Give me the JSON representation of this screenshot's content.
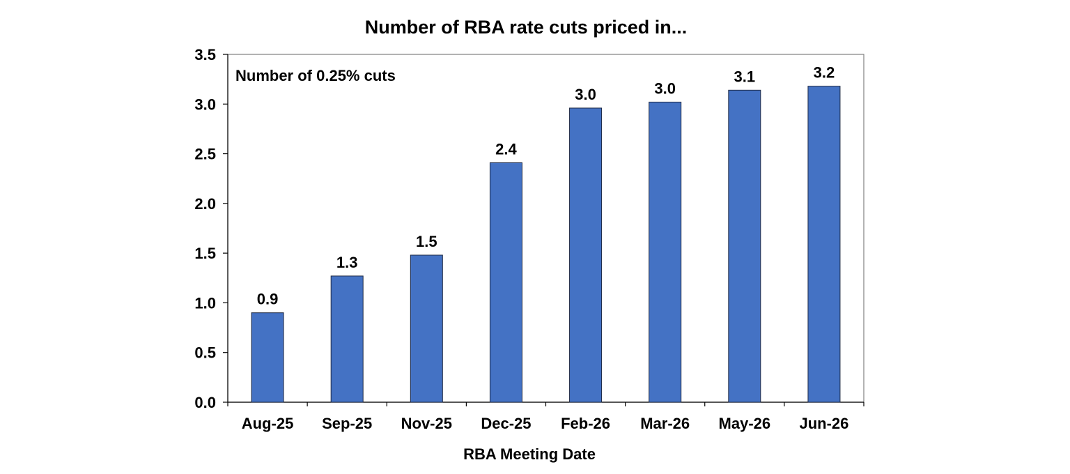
{
  "chart_data": {
    "type": "bar",
    "title": "Number of RBA rate cuts priced in...",
    "xlabel": "RBA Meeting Date",
    "ylabel": "",
    "annotation": "Number of 0.25% cuts",
    "categories": [
      "Aug-25",
      "Sep-25",
      "Nov-25",
      "Dec-25",
      "Feb-26",
      "Mar-26",
      "May-26",
      "Jun-26"
    ],
    "values": [
      0.9,
      1.27,
      1.48,
      2.41,
      2.96,
      3.02,
      3.14,
      3.18
    ],
    "data_labels": [
      "0.9",
      "1.3",
      "1.5",
      "2.4",
      "3.0",
      "3.0",
      "3.1",
      "3.2"
    ],
    "ylim": [
      0,
      3.5
    ],
    "yticks": [
      0,
      0.5,
      1.0,
      1.5,
      2.0,
      2.5,
      3.0,
      3.5
    ],
    "ytick_labels": [
      "0.0",
      "0.5",
      "1.0",
      "1.5",
      "2.0",
      "2.5",
      "3.0",
      "3.5"
    ],
    "grid": false,
    "legend": "none",
    "bar_color": "#4472C4"
  }
}
